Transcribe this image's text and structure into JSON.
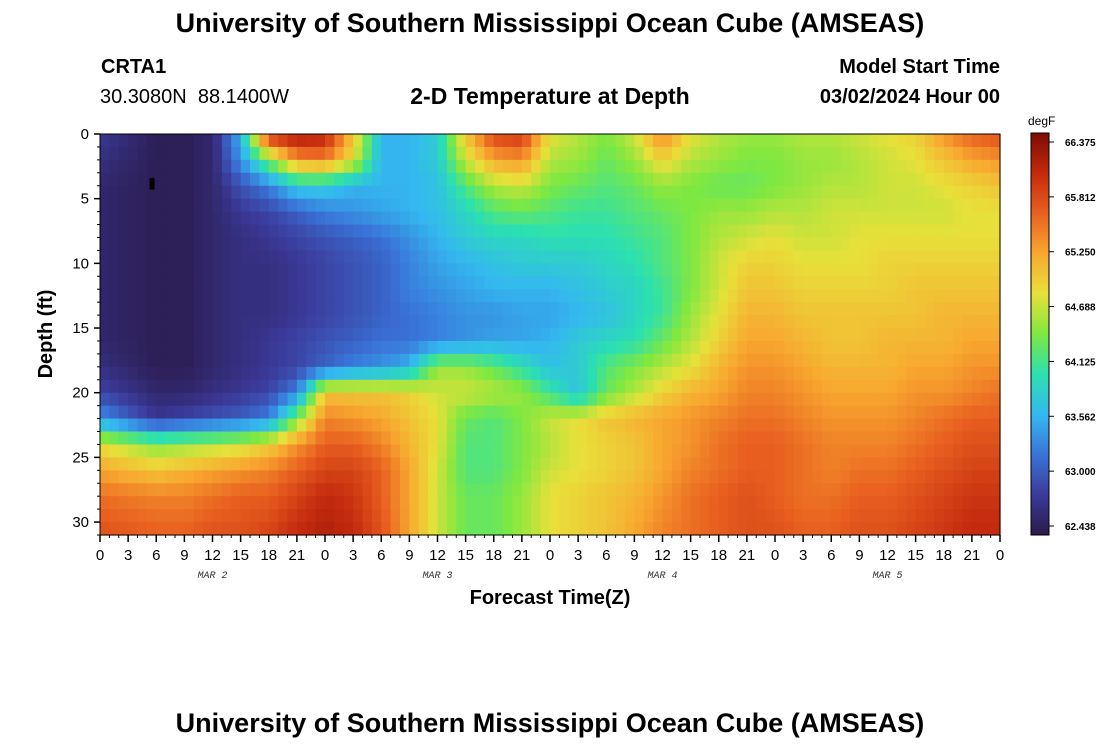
{
  "page": {
    "title": "University of Southern Mississippi Ocean Cube (AMSEAS)",
    "station_id": "CRTA1",
    "station_coords": "30.3080N  88.1400W",
    "plot_title": "2-D Temperature at Depth",
    "model_start_label": "Model Start Time",
    "model_start_value": "03/02/2024 Hour 00",
    "footer_title": "University of Southern Mississippi Ocean Cube (AMSEAS)"
  },
  "chart_data": {
    "type": "heatmap",
    "title": "2-D Temperature at Depth",
    "xlabel": "Forecast Time(Z)",
    "ylabel": "Depth (ft)",
    "ylim": [
      0,
      31
    ],
    "y_ticks": [
      0,
      5,
      10,
      15,
      20,
      25,
      30
    ],
    "x_range_hours": [
      0,
      96
    ],
    "x_tick_labels": [
      "0",
      "3",
      "6",
      "9",
      "12",
      "15",
      "18",
      "21",
      "0",
      "3",
      "6",
      "9",
      "12",
      "15",
      "18",
      "21",
      "0",
      "3",
      "6",
      "9",
      "12",
      "15",
      "18",
      "21",
      "0",
      "3",
      "6",
      "9",
      "12",
      "15",
      "18",
      "21",
      "0"
    ],
    "day_labels": [
      {
        "label": "MAR 2",
        "hour": 12
      },
      {
        "label": "MAR 3",
        "hour": 36
      },
      {
        "label": "MAR 4",
        "hour": 60
      },
      {
        "label": "MAR 5",
        "hour": 84
      }
    ],
    "colorbar": {
      "unit": "degF",
      "min": 62.438,
      "max": 66.375,
      "tick_labels": [
        "66.375",
        "65.812",
        "65.250",
        "64.688",
        "64.125",
        "63.562",
        "63.000",
        "62.438"
      ],
      "colors": [
        "#2a1a4a",
        "#3b3a9a",
        "#3a74d8",
        "#34b8f0",
        "#2be0b0",
        "#7fe840",
        "#e8e03a",
        "#f8a830",
        "#e86020",
        "#c42a0e",
        "#7e0c04"
      ]
    },
    "grid_hours": [
      0,
      6,
      9,
      12,
      15,
      18,
      21,
      24,
      27,
      30,
      33,
      36,
      39,
      42,
      45,
      48,
      51,
      54,
      57,
      60,
      63,
      66,
      69,
      72,
      75,
      78,
      81,
      84,
      87,
      90,
      93,
      96
    ],
    "grid_depths_ft": [
      0,
      2,
      4,
      6,
      8,
      10,
      12,
      14,
      16,
      18,
      20,
      22,
      24,
      26,
      28,
      31
    ],
    "temperature_degF_by_depth": [
      [
        62.8,
        62.5,
        62.5,
        62.6,
        63.6,
        66.0,
        66.2,
        66.1,
        65.0,
        63.6,
        63.6,
        63.8,
        65.0,
        65.8,
        65.9,
        64.8,
        64.6,
        64.4,
        64.7,
        65.4,
        64.8,
        64.6,
        64.5,
        64.5,
        64.6,
        64.6,
        64.7,
        64.8,
        64.9,
        65.3,
        65.6,
        65.7
      ],
      [
        62.7,
        62.5,
        62.5,
        62.6,
        63.4,
        64.4,
        65.3,
        65.4,
        64.8,
        63.6,
        63.6,
        63.8,
        64.7,
        65.2,
        65.3,
        64.6,
        64.5,
        64.3,
        64.5,
        64.9,
        64.6,
        64.5,
        64.4,
        64.4,
        64.5,
        64.5,
        64.6,
        64.7,
        64.8,
        65.0,
        65.2,
        65.3
      ],
      [
        62.6,
        62.5,
        62.5,
        62.6,
        63.0,
        63.3,
        63.8,
        63.8,
        63.6,
        63.6,
        63.6,
        63.7,
        64.2,
        64.6,
        64.7,
        64.4,
        64.3,
        64.2,
        64.3,
        64.5,
        64.4,
        64.3,
        64.3,
        64.4,
        64.5,
        64.6,
        64.6,
        64.7,
        64.7,
        64.8,
        64.9,
        65.0
      ],
      [
        62.6,
        62.5,
        62.5,
        62.6,
        62.8,
        62.9,
        63.1,
        63.3,
        63.4,
        63.5,
        63.6,
        63.7,
        63.9,
        64.2,
        64.3,
        64.2,
        64.1,
        64.1,
        64.2,
        64.3,
        64.4,
        64.5,
        64.5,
        64.6,
        64.6,
        64.7,
        64.7,
        64.7,
        64.7,
        64.7,
        64.8,
        64.8
      ],
      [
        62.6,
        62.5,
        62.5,
        62.6,
        62.7,
        62.8,
        62.9,
        63.0,
        63.1,
        63.2,
        63.4,
        63.6,
        63.8,
        63.9,
        63.9,
        64.0,
        64.0,
        64.0,
        64.1,
        64.2,
        64.4,
        64.6,
        64.7,
        64.8,
        64.7,
        64.7,
        64.8,
        64.8,
        64.8,
        64.8,
        64.8,
        64.8
      ],
      [
        62.6,
        62.5,
        62.5,
        62.6,
        62.7,
        62.7,
        62.8,
        62.9,
        63.0,
        63.1,
        63.3,
        63.5,
        63.6,
        63.7,
        63.8,
        63.8,
        63.8,
        63.9,
        64.0,
        64.2,
        64.4,
        64.7,
        64.9,
        64.9,
        64.8,
        64.8,
        64.8,
        64.9,
        64.9,
        64.9,
        64.9,
        64.9
      ],
      [
        62.6,
        62.5,
        62.5,
        62.6,
        62.7,
        62.7,
        62.8,
        62.9,
        63.0,
        63.1,
        63.3,
        63.4,
        63.5,
        63.6,
        63.6,
        63.6,
        63.7,
        63.8,
        63.9,
        64.1,
        64.4,
        64.7,
        65.0,
        65.0,
        64.9,
        64.9,
        64.9,
        64.9,
        65.0,
        65.0,
        65.0,
        65.0
      ],
      [
        62.6,
        62.5,
        62.5,
        62.6,
        62.7,
        62.7,
        62.8,
        62.9,
        63.0,
        63.1,
        63.2,
        63.3,
        63.4,
        63.4,
        63.5,
        63.5,
        63.6,
        63.7,
        63.9,
        64.1,
        64.5,
        64.8,
        65.1,
        65.1,
        65.0,
        65.0,
        65.0,
        65.0,
        65.0,
        65.1,
        65.1,
        65.1
      ],
      [
        62.6,
        62.5,
        62.5,
        62.6,
        62.7,
        62.8,
        62.9,
        63.0,
        63.1,
        63.2,
        63.2,
        63.3,
        63.4,
        63.5,
        63.5,
        63.6,
        63.8,
        63.9,
        64.0,
        64.3,
        64.6,
        64.9,
        65.2,
        65.2,
        65.1,
        65.0,
        65.0,
        65.1,
        65.1,
        65.1,
        65.2,
        65.2
      ],
      [
        62.7,
        62.5,
        62.5,
        62.6,
        62.7,
        62.8,
        62.9,
        63.1,
        63.3,
        63.4,
        63.6,
        64.5,
        64.5,
        64.3,
        64.0,
        63.7,
        63.8,
        64.2,
        64.4,
        64.6,
        64.8,
        65.1,
        65.3,
        65.3,
        65.2,
        65.1,
        65.1,
        65.1,
        65.2,
        65.2,
        65.3,
        65.3
      ],
      [
        62.9,
        62.6,
        62.6,
        62.7,
        62.8,
        62.9,
        63.3,
        65.0,
        65.0,
        65.0,
        64.9,
        64.7,
        64.7,
        64.6,
        64.5,
        64.1,
        63.7,
        64.3,
        64.6,
        64.9,
        65.1,
        65.2,
        65.4,
        65.4,
        65.3,
        65.2,
        65.2,
        65.2,
        65.3,
        65.3,
        65.4,
        65.5
      ],
      [
        63.4,
        62.8,
        62.9,
        63.0,
        63.1,
        63.3,
        64.4,
        65.4,
        65.3,
        65.2,
        65.0,
        64.8,
        64.3,
        64.2,
        64.4,
        64.7,
        64.8,
        65.0,
        65.1,
        65.2,
        65.3,
        65.4,
        65.5,
        65.5,
        65.4,
        65.3,
        65.3,
        65.3,
        65.4,
        65.5,
        65.6,
        65.6
      ],
      [
        64.8,
        64.4,
        64.5,
        64.6,
        64.7,
        64.9,
        65.3,
        65.6,
        65.6,
        65.4,
        65.1,
        64.8,
        64.2,
        64.2,
        64.4,
        64.6,
        64.8,
        64.9,
        65.0,
        65.2,
        65.3,
        65.5,
        65.6,
        65.6,
        65.5,
        65.4,
        65.4,
        65.4,
        65.5,
        65.6,
        65.7,
        65.7
      ],
      [
        65.2,
        65.0,
        65.1,
        65.2,
        65.3,
        65.4,
        65.6,
        65.8,
        65.8,
        65.6,
        65.2,
        64.7,
        64.2,
        64.2,
        64.4,
        64.7,
        64.8,
        64.9,
        65.0,
        65.2,
        65.4,
        65.5,
        65.6,
        65.6,
        65.5,
        65.4,
        65.5,
        65.5,
        65.6,
        65.7,
        65.8,
        65.8
      ],
      [
        65.5,
        65.4,
        65.4,
        65.5,
        65.6,
        65.6,
        65.8,
        66.0,
        65.9,
        65.6,
        65.2,
        64.7,
        64.3,
        64.3,
        64.5,
        64.8,
        64.9,
        65.0,
        65.1,
        65.3,
        65.5,
        65.6,
        65.7,
        65.6,
        65.5,
        65.5,
        65.6,
        65.6,
        65.7,
        65.8,
        65.9,
        65.9
      ],
      [
        65.7,
        65.6,
        65.6,
        65.7,
        65.7,
        65.8,
        66.0,
        66.1,
        66.0,
        65.7,
        65.2,
        64.7,
        64.3,
        64.3,
        64.5,
        64.8,
        64.9,
        65.0,
        65.2,
        65.4,
        65.5,
        65.6,
        65.7,
        65.7,
        65.6,
        65.6,
        65.7,
        65.7,
        65.8,
        65.9,
        66.0,
        66.0
      ]
    ],
    "marker": {
      "hour": 5.5,
      "depth_from": 3.4,
      "depth_to": 4.3
    }
  }
}
